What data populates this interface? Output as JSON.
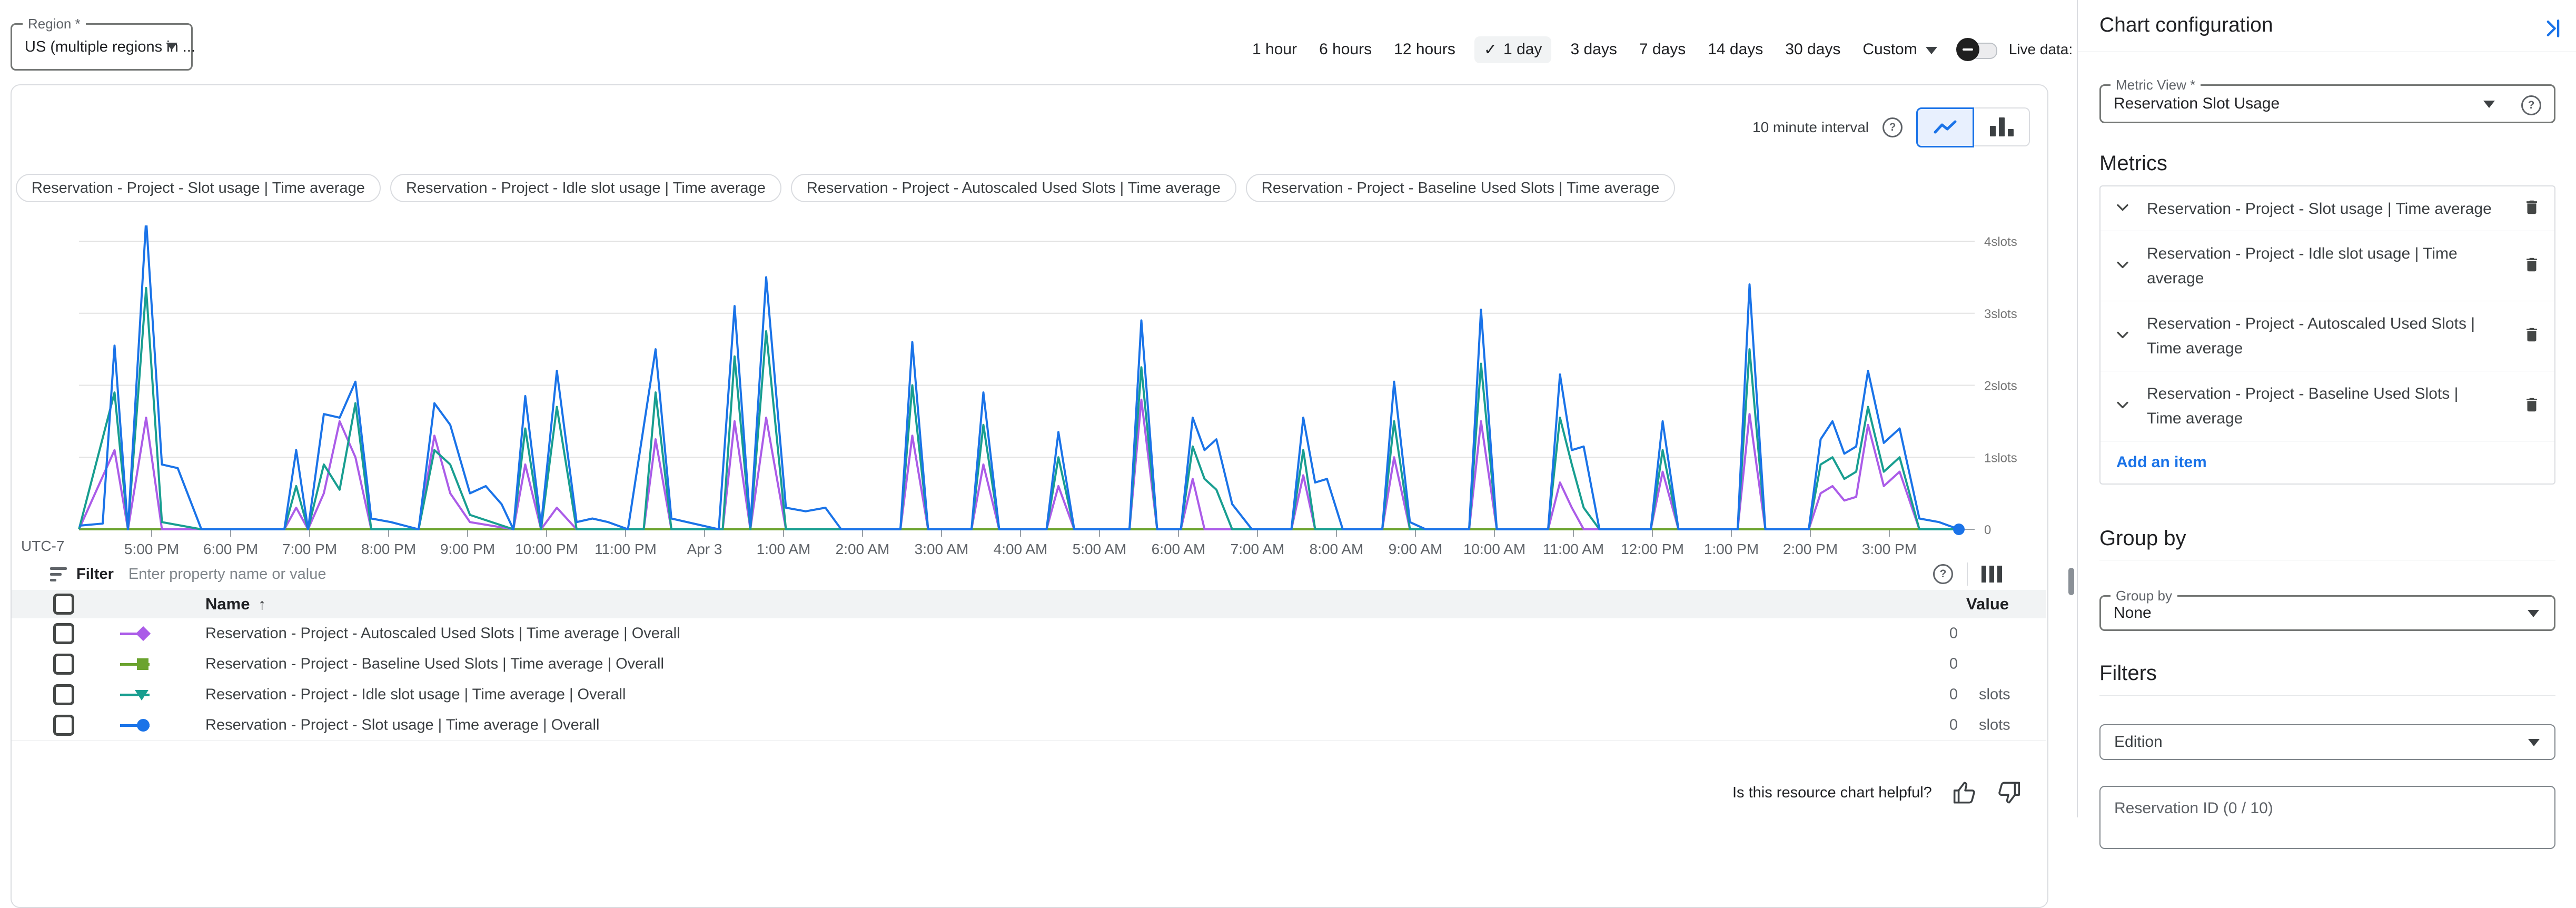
{
  "region": {
    "label": "Region *",
    "value": "US (multiple regions in ..."
  },
  "time_controls": {
    "ranges": [
      "1 hour",
      "6 hours",
      "12 hours",
      "1 day",
      "3 days",
      "7 days",
      "14 days",
      "30 days"
    ],
    "selected": "1 day",
    "selected_check": "✓",
    "custom_label": "Custom",
    "live_data_label": "Live data:",
    "live_data_status": "Disabled"
  },
  "chart": {
    "interval_label": "10 minute interval",
    "utc_label": "UTC-7",
    "legend_chips": [
      "Reservation - Project - Slot usage | Time average",
      "Reservation - Project - Idle slot usage | Time average",
      "Reservation - Project - Autoscaled Used Slots | Time average",
      "Reservation - Project - Baseline Used Slots | Time average"
    ]
  },
  "chart_data": {
    "type": "line",
    "title": "Reservation Slot Usage",
    "ylabel": "slots",
    "ylim": [
      0,
      4.6
    ],
    "x_domain_hours": [
      0,
      24
    ],
    "x_start": "4:00 PM (UTC-7), spanning 1 day to 4:00 PM Apr 3",
    "grid": true,
    "legend_position": "top",
    "y_ticks": [
      {
        "v": 4,
        "label": "4slots"
      },
      {
        "v": 3,
        "label": "3slots"
      },
      {
        "v": 2,
        "label": "2slots"
      },
      {
        "v": 1,
        "label": "1slots"
      },
      {
        "v": 0,
        "label": "0"
      }
    ],
    "x_ticks": [
      {
        "t": 0.92,
        "label": "5:00 PM"
      },
      {
        "t": 1.92,
        "label": "6:00 PM"
      },
      {
        "t": 2.92,
        "label": "7:00 PM"
      },
      {
        "t": 3.92,
        "label": "8:00 PM"
      },
      {
        "t": 4.92,
        "label": "9:00 PM"
      },
      {
        "t": 5.92,
        "label": "10:00 PM"
      },
      {
        "t": 6.92,
        "label": "11:00 PM"
      },
      {
        "t": 7.92,
        "label": "Apr 3"
      },
      {
        "t": 8.92,
        "label": "1:00 AM"
      },
      {
        "t": 9.92,
        "label": "2:00 AM"
      },
      {
        "t": 10.92,
        "label": "3:00 AM"
      },
      {
        "t": 11.92,
        "label": "4:00 AM"
      },
      {
        "t": 12.92,
        "label": "5:00 AM"
      },
      {
        "t": 13.92,
        "label": "6:00 AM"
      },
      {
        "t": 14.92,
        "label": "7:00 AM"
      },
      {
        "t": 15.92,
        "label": "8:00 AM"
      },
      {
        "t": 16.92,
        "label": "9:00 AM"
      },
      {
        "t": 17.92,
        "label": "10:00 AM"
      },
      {
        "t": 18.92,
        "label": "11:00 AM"
      },
      {
        "t": 19.92,
        "label": "12:00 PM"
      },
      {
        "t": 20.92,
        "label": "1:00 PM"
      },
      {
        "t": 21.92,
        "label": "2:00 PM"
      },
      {
        "t": 22.92,
        "label": "3:00 PM"
      }
    ],
    "series": [
      {
        "name": "Reservation - Project - Slot usage | Time average",
        "color": "#1a73e8",
        "points": [
          [
            0,
            0.05
          ],
          [
            0.3,
            0.08
          ],
          [
            0.45,
            2.55
          ],
          [
            0.62,
            0
          ],
          [
            0.85,
            4.3
          ],
          [
            1.05,
            0.9
          ],
          [
            1.25,
            0.85
          ],
          [
            1.55,
            0
          ],
          [
            2.6,
            0
          ],
          [
            2.75,
            1.1
          ],
          [
            2.9,
            0
          ],
          [
            3.1,
            1.6
          ],
          [
            3.3,
            1.55
          ],
          [
            3.5,
            2.05
          ],
          [
            3.7,
            0.15
          ],
          [
            3.95,
            0.1
          ],
          [
            4.3,
            0
          ],
          [
            4.5,
            1.75
          ],
          [
            4.7,
            1.45
          ],
          [
            4.95,
            0.5
          ],
          [
            5.15,
            0.6
          ],
          [
            5.35,
            0.35
          ],
          [
            5.5,
            0
          ],
          [
            5.65,
            1.85
          ],
          [
            5.85,
            0.05
          ],
          [
            6.05,
            2.2
          ],
          [
            6.3,
            0.1
          ],
          [
            6.5,
            0.15
          ],
          [
            6.7,
            0.1
          ],
          [
            6.95,
            0
          ],
          [
            7.3,
            2.5
          ],
          [
            7.5,
            0.15
          ],
          [
            7.7,
            0.1
          ],
          [
            8.1,
            0
          ],
          [
            8.3,
            3.1
          ],
          [
            8.5,
            0.05
          ],
          [
            8.7,
            3.5
          ],
          [
            8.95,
            0.3
          ],
          [
            9.2,
            0.25
          ],
          [
            9.45,
            0.3
          ],
          [
            9.65,
            0
          ],
          [
            10.4,
            0
          ],
          [
            10.55,
            2.6
          ],
          [
            10.75,
            0
          ],
          [
            11.3,
            0
          ],
          [
            11.45,
            1.9
          ],
          [
            11.65,
            0
          ],
          [
            12.25,
            0
          ],
          [
            12.4,
            1.35
          ],
          [
            12.6,
            0
          ],
          [
            13.3,
            0
          ],
          [
            13.45,
            2.9
          ],
          [
            13.65,
            0
          ],
          [
            13.95,
            0
          ],
          [
            14.1,
            1.55
          ],
          [
            14.25,
            1.1
          ],
          [
            14.4,
            1.25
          ],
          [
            14.6,
            0.35
          ],
          [
            14.85,
            0
          ],
          [
            15.35,
            0
          ],
          [
            15.5,
            1.55
          ],
          [
            15.65,
            0.65
          ],
          [
            15.8,
            0.7
          ],
          [
            16.0,
            0
          ],
          [
            16.5,
            0
          ],
          [
            16.65,
            2.05
          ],
          [
            16.85,
            0.1
          ],
          [
            17.05,
            0
          ],
          [
            17.6,
            0
          ],
          [
            17.75,
            3.05
          ],
          [
            17.95,
            0
          ],
          [
            18.6,
            0
          ],
          [
            18.75,
            2.15
          ],
          [
            18.9,
            1.1
          ],
          [
            19.05,
            1.15
          ],
          [
            19.25,
            0
          ],
          [
            19.9,
            0
          ],
          [
            20.05,
            1.5
          ],
          [
            20.25,
            0
          ],
          [
            21.0,
            0
          ],
          [
            21.15,
            3.4
          ],
          [
            21.35,
            0
          ],
          [
            21.9,
            0
          ],
          [
            22.05,
            1.25
          ],
          [
            22.2,
            1.5
          ],
          [
            22.35,
            1.05
          ],
          [
            22.5,
            1.15
          ],
          [
            22.65,
            2.2
          ],
          [
            22.85,
            1.2
          ],
          [
            23.05,
            1.4
          ],
          [
            23.3,
            0.15
          ],
          [
            23.55,
            0.1
          ],
          [
            23.8,
            0
          ]
        ]
      },
      {
        "name": "Reservation - Project - Idle slot usage | Time average",
        "color": "#189e90",
        "points": [
          [
            0,
            0
          ],
          [
            0.45,
            1.9
          ],
          [
            0.62,
            0
          ],
          [
            0.85,
            3.35
          ],
          [
            1.05,
            0.1
          ],
          [
            1.55,
            0
          ],
          [
            2.6,
            0
          ],
          [
            2.75,
            0.6
          ],
          [
            2.9,
            0
          ],
          [
            3.1,
            0.9
          ],
          [
            3.3,
            0.55
          ],
          [
            3.5,
            1.75
          ],
          [
            3.7,
            0
          ],
          [
            4.3,
            0
          ],
          [
            4.5,
            1.1
          ],
          [
            4.7,
            0.9
          ],
          [
            4.95,
            0.2
          ],
          [
            5.5,
            0
          ],
          [
            5.65,
            1.4
          ],
          [
            5.85,
            0
          ],
          [
            6.05,
            1.7
          ],
          [
            6.3,
            0
          ],
          [
            7.15,
            0
          ],
          [
            7.3,
            1.9
          ],
          [
            7.5,
            0
          ],
          [
            8.15,
            0
          ],
          [
            8.3,
            2.4
          ],
          [
            8.5,
            0
          ],
          [
            8.7,
            2.75
          ],
          [
            8.95,
            0
          ],
          [
            10.4,
            0
          ],
          [
            10.55,
            2.0
          ],
          [
            10.75,
            0
          ],
          [
            11.3,
            0
          ],
          [
            11.45,
            1.45
          ],
          [
            11.65,
            0
          ],
          [
            12.25,
            0
          ],
          [
            12.4,
            1.0
          ],
          [
            12.6,
            0
          ],
          [
            13.3,
            0
          ],
          [
            13.45,
            2.25
          ],
          [
            13.65,
            0
          ],
          [
            13.95,
            0
          ],
          [
            14.1,
            1.15
          ],
          [
            14.25,
            0.7
          ],
          [
            14.4,
            0.55
          ],
          [
            14.6,
            0
          ],
          [
            15.35,
            0
          ],
          [
            15.5,
            1.1
          ],
          [
            15.65,
            0
          ],
          [
            16.5,
            0
          ],
          [
            16.65,
            1.5
          ],
          [
            16.85,
            0
          ],
          [
            17.6,
            0
          ],
          [
            17.75,
            2.3
          ],
          [
            17.95,
            0
          ],
          [
            18.6,
            0
          ],
          [
            18.75,
            1.55
          ],
          [
            18.9,
            0.9
          ],
          [
            19.05,
            0.3
          ],
          [
            19.25,
            0
          ],
          [
            19.9,
            0
          ],
          [
            20.05,
            1.1
          ],
          [
            20.25,
            0
          ],
          [
            21.0,
            0
          ],
          [
            21.15,
            2.5
          ],
          [
            21.35,
            0
          ],
          [
            21.9,
            0
          ],
          [
            22.05,
            0.9
          ],
          [
            22.2,
            1.0
          ],
          [
            22.35,
            0.7
          ],
          [
            22.5,
            0.8
          ],
          [
            22.65,
            1.7
          ],
          [
            22.85,
            0.8
          ],
          [
            23.05,
            1.0
          ],
          [
            23.3,
            0
          ],
          [
            23.8,
            0
          ]
        ]
      },
      {
        "name": "Reservation - Project - Autoscaled Used Slots | Time average",
        "color": "#ab5ce8",
        "points": [
          [
            0,
            0
          ],
          [
            0.45,
            1.1
          ],
          [
            0.62,
            0
          ],
          [
            0.85,
            1.55
          ],
          [
            1.05,
            0
          ],
          [
            2.6,
            0
          ],
          [
            2.75,
            0.3
          ],
          [
            2.9,
            0
          ],
          [
            3.1,
            0.5
          ],
          [
            3.3,
            1.5
          ],
          [
            3.5,
            1.0
          ],
          [
            3.7,
            0
          ],
          [
            4.3,
            0
          ],
          [
            4.5,
            1.3
          ],
          [
            4.7,
            0.5
          ],
          [
            4.95,
            0.1
          ],
          [
            5.5,
            0
          ],
          [
            5.65,
            0.9
          ],
          [
            5.85,
            0
          ],
          [
            6.05,
            0.3
          ],
          [
            6.3,
            0
          ],
          [
            7.15,
            0
          ],
          [
            7.3,
            1.25
          ],
          [
            7.5,
            0
          ],
          [
            8.15,
            0
          ],
          [
            8.3,
            1.5
          ],
          [
            8.5,
            0
          ],
          [
            8.7,
            1.55
          ],
          [
            8.95,
            0
          ],
          [
            10.4,
            0
          ],
          [
            10.55,
            1.3
          ],
          [
            10.75,
            0
          ],
          [
            11.3,
            0
          ],
          [
            11.45,
            0.9
          ],
          [
            11.65,
            0
          ],
          [
            12.25,
            0
          ],
          [
            12.4,
            0.6
          ],
          [
            12.6,
            0
          ],
          [
            13.3,
            0
          ],
          [
            13.45,
            1.8
          ],
          [
            13.65,
            0
          ],
          [
            13.95,
            0
          ],
          [
            14.1,
            0.7
          ],
          [
            14.25,
            0
          ],
          [
            15.35,
            0
          ],
          [
            15.5,
            0.75
          ],
          [
            15.65,
            0
          ],
          [
            16.5,
            0
          ],
          [
            16.65,
            1.0
          ],
          [
            16.85,
            0
          ],
          [
            17.6,
            0
          ],
          [
            17.75,
            1.5
          ],
          [
            17.95,
            0
          ],
          [
            18.6,
            0
          ],
          [
            18.75,
            0.65
          ],
          [
            18.9,
            0.3
          ],
          [
            19.05,
            0
          ],
          [
            19.9,
            0
          ],
          [
            20.05,
            0.8
          ],
          [
            20.25,
            0
          ],
          [
            21.0,
            0
          ],
          [
            21.15,
            1.6
          ],
          [
            21.35,
            0
          ],
          [
            21.9,
            0
          ],
          [
            22.05,
            0.5
          ],
          [
            22.2,
            0.6
          ],
          [
            22.35,
            0.4
          ],
          [
            22.5,
            0.45
          ],
          [
            22.65,
            1.45
          ],
          [
            22.85,
            0.6
          ],
          [
            23.05,
            0.8
          ],
          [
            23.3,
            0
          ],
          [
            23.8,
            0
          ]
        ]
      },
      {
        "name": "Reservation - Project - Baseline Used Slots | Time average",
        "color": "#6ba32e",
        "points": [
          [
            0,
            0
          ],
          [
            23.8,
            0
          ]
        ]
      }
    ],
    "end_marker": {
      "series": "Reservation - Project - Slot usage | Time average",
      "t": 23.8,
      "v": 0,
      "color": "#1a73e8"
    }
  },
  "table": {
    "filter_label": "Filter",
    "filter_placeholder": "Enter property name or value",
    "name_column": "Name",
    "sort_arrow": "↑",
    "value_column": "Value",
    "rows": [
      {
        "name": "Reservation - Project - Autoscaled Used Slots | Time average | Overall",
        "value": "0",
        "unit": "",
        "marker": "diamond",
        "color": "#ab5ce8"
      },
      {
        "name": "Reservation - Project - Baseline Used Slots | Time average | Overall",
        "value": "0",
        "unit": "",
        "marker": "square",
        "color": "#6ba32e"
      },
      {
        "name": "Reservation - Project - Idle slot usage | Time average | Overall",
        "value": "0",
        "unit": "slots",
        "marker": "triangle-down",
        "color": "#189e90"
      },
      {
        "name": "Reservation - Project - Slot usage | Time average | Overall",
        "value": "0",
        "unit": "slots",
        "marker": "circle",
        "color": "#1a73e8"
      }
    ]
  },
  "footer": {
    "question": "Is this resource chart helpful?"
  },
  "sidebar": {
    "title": "Chart configuration",
    "metric_view": {
      "label": "Metric View *",
      "value": "Reservation Slot Usage"
    },
    "metrics_heading": "Metrics",
    "metrics": [
      "Reservation - Project - Slot usage | Time average",
      "Reservation - Project - Idle slot usage | Time average",
      "Reservation - Project - Autoscaled Used Slots | Time average",
      "Reservation - Project - Baseline Used Slots | Time average"
    ],
    "add_item_label": "Add an item",
    "group_by_heading": "Group by",
    "group_by": {
      "label": "Group by",
      "value": "None"
    },
    "filters_heading": "Filters",
    "edition_filter": "Edition",
    "reservation_filter": "Reservation ID (0 / 10)"
  },
  "colors": {
    "accent": "#1a73e8",
    "border": "#dadce0",
    "grid": "#e3e3e3",
    "axis": "#9aa0a6"
  }
}
